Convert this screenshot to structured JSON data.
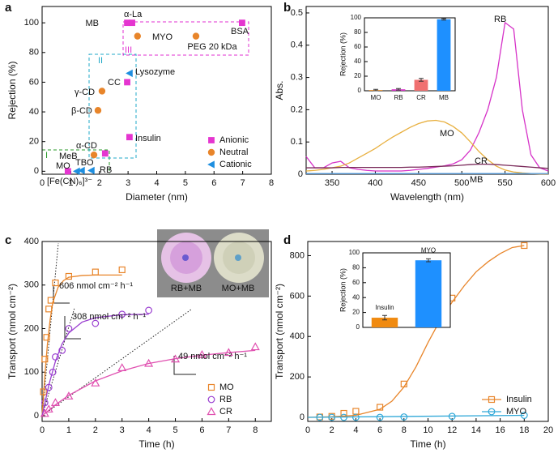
{
  "chart_data": [
    {
      "type": "scatter",
      "panel_label": "a",
      "x_label": "Diameter (nm)",
      "y_label": "Rejection (%)",
      "xlim": [
        0,
        8
      ],
      "ylim": [
        -2,
        111
      ],
      "xticks": [
        0,
        1,
        2,
        3,
        4,
        5,
        6,
        7,
        8
      ],
      "yticks": [
        0,
        20,
        40,
        60,
        80,
        100
      ],
      "legend": "lower right",
      "series": [
        {
          "name": "Anionic",
          "color": "#e535d0",
          "marker": "square",
          "filled": true,
          "x": [
            0.9,
            2.2,
            3.05,
            2.97,
            2.97,
            3.14,
            6.98
          ],
          "values": [
            0,
            12,
            23,
            60,
            100,
            100,
            100
          ]
        },
        {
          "name": "Neutral",
          "color": "#e8852a",
          "marker": "circle",
          "filled": true,
          "x": [
            1.81,
            1.95,
            2.09,
            3.33,
            5.37
          ],
          "values": [
            11,
            41,
            54,
            91,
            91
          ]
        },
        {
          "name": "Cationic",
          "color": "#1e8fe0",
          "marker": "triangle-left",
          "filled": true,
          "x": [
            1.21,
            1.38,
            1.72,
            3.05
          ],
          "values": [
            0,
            0.5,
            0.5,
            66
          ]
        }
      ],
      "annotations": [
        "MB",
        "α-La",
        "BSA",
        "MYO",
        "PEG 20 kDa",
        "Lysozyme",
        "CC",
        "γ-CD",
        "β-CD",
        "Insulin",
        "α-CD",
        "MeB",
        "MO",
        "TBO",
        "RB",
        "[Fe(CN)₆]³⁻",
        "I",
        "II",
        "III"
      ]
    },
    {
      "type": "line",
      "panel_label": "b",
      "x_label": "Wavelength (nm)",
      "y_label": "Abs.",
      "xlim": [
        320,
        600
      ],
      "ylim": [
        0,
        0.52
      ],
      "xticks": [
        350,
        400,
        450,
        500,
        550,
        600
      ],
      "yticks": [
        0,
        0.1,
        0.2,
        0.3,
        0.4,
        0.5
      ],
      "x": [
        320,
        330,
        340,
        350,
        360,
        370,
        380,
        390,
        400,
        410,
        420,
        430,
        440,
        450,
        460,
        470,
        480,
        490,
        500,
        510,
        520,
        530,
        540,
        550,
        560,
        570,
        580,
        590,
        600
      ],
      "series": [
        {
          "color": "#d633c8",
          "values": [
            0.055,
            0.02,
            0.02,
            0.035,
            0.04,
            0.02,
            0.015,
            0.012,
            0.01,
            0.01,
            0.01,
            0.01,
            0.012,
            0.015,
            0.018,
            0.022,
            0.026,
            0.032,
            0.045,
            0.075,
            0.13,
            0.2,
            0.3,
            0.47,
            0.45,
            0.2,
            0.06,
            0.02,
            0.01
          ]
        },
        {
          "color": "#e8b040",
          "values": [
            0.01,
            0.012,
            0.015,
            0.02,
            0.025,
            0.035,
            0.05,
            0.065,
            0.08,
            0.098,
            0.115,
            0.13,
            0.145,
            0.157,
            0.165,
            0.167,
            0.162,
            0.148,
            0.128,
            0.1,
            0.07,
            0.045,
            0.025,
            0.013,
            0.007,
            0.004,
            0.002,
            0.001,
            0.001
          ]
        },
        {
          "color": "#7a2a5a",
          "values": [
            0.02,
            0.02,
            0.02,
            0.02,
            0.021,
            0.021,
            0.021,
            0.021,
            0.021,
            0.021,
            0.021,
            0.021,
            0.022,
            0.022,
            0.023,
            0.024,
            0.025,
            0.026,
            0.028,
            0.03,
            0.031,
            0.031,
            0.03,
            0.028,
            0.026,
            0.024,
            0.022,
            0.02,
            0.018
          ]
        },
        {
          "color": "#5aa0e0",
          "values": [
            0.002,
            0.002,
            0.002,
            0.002,
            0.002,
            0.002,
            0.002,
            0.002,
            0.002,
            0.002,
            0.002,
            0.002,
            0.002,
            0.002,
            0.002,
            0.002,
            0.002,
            0.002,
            0.002,
            0.002,
            0.002,
            0.002,
            0.002,
            0.002,
            0.002,
            0.002,
            0.002,
            0.002,
            0.002
          ]
        }
      ],
      "annotations": [
        "RB",
        "MO",
        "CR",
        "MB"
      ]
    },
    {
      "type": "scatter",
      "panel_label": "c",
      "x_label": "Time (h)",
      "y_label": "Transport (nmol cm⁻²)",
      "xlim": [
        0,
        8.6
      ],
      "ylim": [
        -13,
        400
      ],
      "xticks": [
        0,
        1,
        2,
        3,
        4,
        5,
        6,
        7,
        8
      ],
      "yticks": [
        0,
        100,
        200,
        300,
        400
      ],
      "legend": "lower right",
      "series": [
        {
          "name": "MO",
          "color": "#e8852a",
          "marker": "square",
          "filled": false,
          "x": [
            0.05,
            0.1,
            0.17,
            0.25,
            0.33,
            0.5,
            1,
            2,
            3
          ],
          "values": [
            55,
            130,
            180,
            245,
            265,
            305,
            320,
            330,
            335
          ]
        },
        {
          "name": "RB",
          "color": "#9a3fd0",
          "marker": "circle",
          "filled": false,
          "x": [
            0.1,
            0.25,
            0.4,
            0.5,
            0.75,
            1,
            2,
            3,
            4
          ],
          "values": [
            30,
            65,
            100,
            135,
            150,
            200,
            212,
            233,
            242
          ]
        },
        {
          "name": "CR",
          "color": "#e050b0",
          "marker": "triangle",
          "filled": false,
          "x": [
            0.1,
            0.25,
            0.5,
            1,
            2,
            3,
            4,
            5,
            6,
            7,
            8
          ],
          "values": [
            5,
            15,
            30,
            45,
            75,
            110,
            120,
            130,
            140,
            145,
            158
          ]
        },
        {
          "color": "#e8852a",
          "mode": "line",
          "x": [
            0,
            0.1,
            0.2,
            0.3,
            0.4,
            0.6,
            0.8,
            1,
            1.5,
            2,
            3
          ],
          "values": [
            0,
            90,
            165,
            220,
            260,
            295,
            310,
            318,
            322,
            323,
            323
          ]
        },
        {
          "color": "#9a3fd0",
          "mode": "line",
          "x": [
            0,
            0.25,
            0.5,
            0.75,
            1,
            1.5,
            2,
            3,
            4
          ],
          "values": [
            0,
            70,
            125,
            165,
            190,
            215,
            225,
            232,
            233
          ]
        },
        {
          "color": "#e050b0",
          "mode": "line",
          "x": [
            0,
            0.5,
            1,
            2,
            3,
            4,
            5,
            6,
            7,
            8
          ],
          "values": [
            0,
            25,
            47,
            80,
            103,
            120,
            131,
            139,
            145,
            150
          ]
        }
      ],
      "annotations": [
        "606 nmol cm⁻² h⁻¹",
        "308 nmol cm⁻² h⁻¹",
        "49 nmol cm⁻² h⁻¹",
        "RB+MB",
        "MO+MB"
      ]
    },
    {
      "type": "scatter",
      "panel_label": "d",
      "x_label": "Time (h)",
      "y_label": "Transport (nmol cm⁻²)",
      "xlim": [
        0,
        20
      ],
      "ylim": [
        -20,
        870
      ],
      "xticks": [
        0,
        2,
        4,
        6,
        8,
        10,
        12,
        14,
        16,
        18,
        20
      ],
      "yticks": [
        0,
        200,
        400,
        600,
        800
      ],
      "legend": "lower right",
      "legend_line": true,
      "series": [
        {
          "name": "Insulin",
          "color": "#e8852a",
          "marker": "square",
          "filled": false,
          "x": [
            1,
            2,
            3,
            4,
            6,
            8,
            12,
            18
          ],
          "values": [
            2,
            5,
            20,
            30,
            50,
            165,
            590,
            850
          ]
        },
        {
          "name": "MYO",
          "color": "#30a8d8",
          "marker": "circle",
          "filled": false,
          "x": [
            1,
            2,
            3,
            4,
            6,
            8,
            12,
            18
          ],
          "values": [
            0,
            0,
            0,
            0,
            0,
            2,
            5,
            10
          ]
        },
        {
          "color": "#e8852a",
          "mode": "line",
          "x": [
            0,
            2,
            4,
            6,
            7,
            8,
            9,
            10,
            11,
            12,
            13,
            14,
            15,
            16,
            17,
            18
          ],
          "values": [
            0,
            3,
            10,
            40,
            80,
            150,
            250,
            370,
            480,
            570,
            650,
            720,
            770,
            810,
            840,
            850
          ]
        },
        {
          "color": "#30a8d8",
          "mode": "line",
          "x": [
            0,
            18
          ],
          "values": [
            0,
            10
          ]
        }
      ]
    },
    {
      "type": "bar",
      "y_label": "Rejection (%)",
      "categories": [
        "MO",
        "RB",
        "CR",
        "MB"
      ],
      "values": [
        1,
        2,
        15,
        98
      ],
      "errors": [
        1,
        1,
        2,
        1
      ],
      "colors": [
        "#e8902a",
        "#d633c8",
        "#f07070",
        "#1e90ff"
      ],
      "ylim": [
        0,
        100
      ],
      "yticks": [
        0,
        20,
        40,
        60,
        80,
        100
      ]
    },
    {
      "type": "bar",
      "y_label": "Rejection (%)",
      "categories": [
        "Insulin",
        "MYO"
      ],
      "values": [
        13,
        90
      ],
      "errors": [
        3,
        2
      ],
      "colors": [
        "#f08a10",
        "#1e90ff"
      ],
      "ylim": [
        0,
        100
      ],
      "yticks": [
        0,
        20,
        40,
        60,
        80,
        100
      ]
    }
  ]
}
